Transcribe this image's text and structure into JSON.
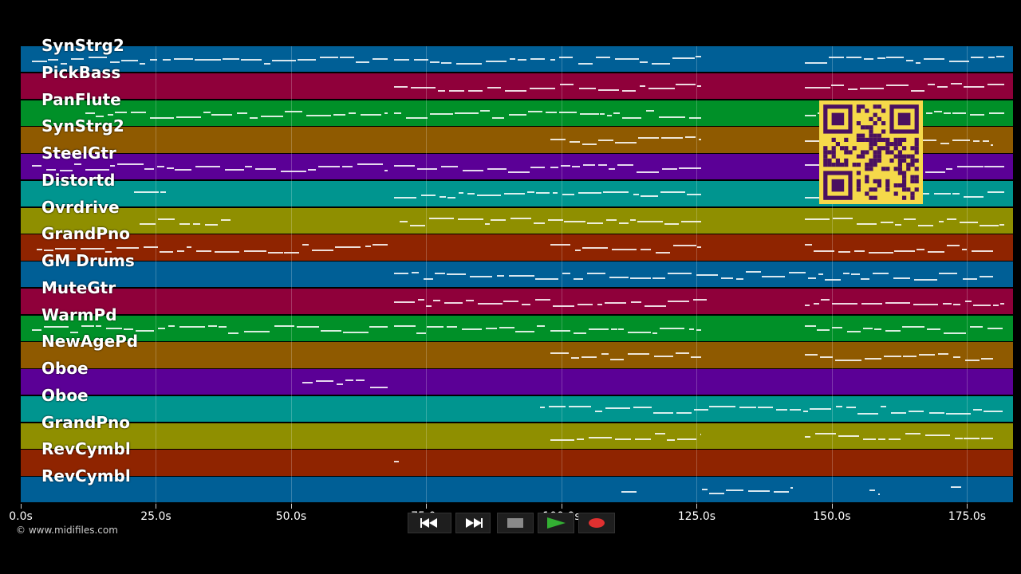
{
  "tracks": [
    {
      "name": "SynStrg2",
      "color": "#005f96"
    },
    {
      "name": "PickBass",
      "color": "#8f003a"
    },
    {
      "name": "PanFlute",
      "color": "#009028"
    },
    {
      "name": "SynStrg2",
      "color": "#8f5a00"
    },
    {
      "name": "SteelGtr",
      "color": "#5b0096"
    },
    {
      "name": "Distortd",
      "color": "#00958f"
    },
    {
      "name": "Ovrdrive",
      "color": "#8f8f00"
    },
    {
      "name": "GrandPno",
      "color": "#8f2400"
    },
    {
      "name": "GM Drums",
      "color": "#005f96"
    },
    {
      "name": "MuteGtr",
      "color": "#8f003a"
    },
    {
      "name": "WarmPd",
      "color": "#009028"
    },
    {
      "name": "NewAgePd",
      "color": "#8f5a00"
    },
    {
      "name": "Oboe",
      "color": "#5b0096"
    },
    {
      "name": "Oboe",
      "color": "#00958f"
    },
    {
      "name": "GrandPno",
      "color": "#8f8f00"
    },
    {
      "name": "RevCymbl",
      "color": "#8f2400"
    },
    {
      "name": "RevCymbl",
      "color": "#005f96"
    }
  ],
  "timeline": {
    "max_seconds": 183.5,
    "ticks": [
      "0.0s",
      "25.0s",
      "50.0s",
      "75.0s",
      "100.0s",
      "125.0s",
      "150.0s",
      "175.0s"
    ],
    "tick_values": [
      0,
      25,
      50,
      75,
      100,
      125,
      150,
      175
    ]
  },
  "copyright": "© www.midifiles.com",
  "transport": {
    "rewind_icon": "rewind-icon",
    "fastforward_icon": "fast-forward-icon",
    "stop_icon": "stop-icon",
    "play_icon": "play-icon",
    "record_icon": "record-icon",
    "play_color": "#2e8b2e",
    "record_color": "#e03030"
  },
  "overlay": {
    "icon": "qr-code-icon",
    "color": "#f5d94a"
  }
}
